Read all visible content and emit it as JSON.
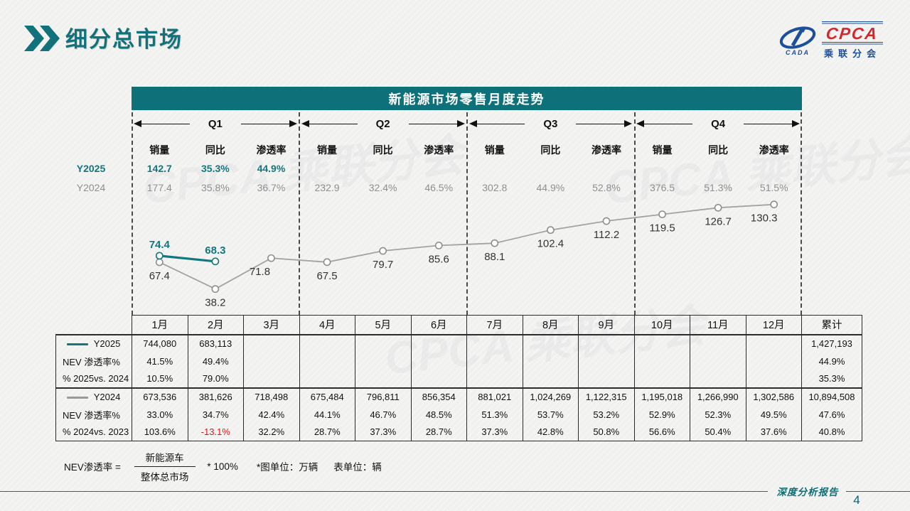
{
  "page": {
    "title": "细分总市场",
    "watermark": "CPCA 乘联分会"
  },
  "logo": {
    "brand": "CPCA",
    "sub_brand": "乘联分会",
    "emblem_text": "CADA"
  },
  "chart_header": {
    "title": "新能源市场零售月度走势"
  },
  "chart_data": {
    "type": "line",
    "title": "新能源市场零售月度走势",
    "unit_note": "图单位：万辆",
    "x_categories": [
      "1月",
      "2月",
      "3月",
      "4月",
      "5月",
      "6月",
      "7月",
      "8月",
      "9月",
      "10月",
      "11月",
      "12月"
    ],
    "quarters": [
      "Q1",
      "Q2",
      "Q3",
      "Q4"
    ],
    "ylim": [
      20,
      150
    ],
    "legend_position": "table-left-column",
    "grid": "dashed vertical separators between quarters",
    "series": [
      {
        "name": "Y2025",
        "color": "#117781",
        "values": [
          74.4,
          68.3,
          null,
          null,
          null,
          null,
          null,
          null,
          null,
          null,
          null,
          null
        ]
      },
      {
        "name": "Y2024",
        "color": "#a3a3a3",
        "values": [
          67.4,
          38.2,
          71.8,
          67.5,
          79.7,
          85.6,
          88.1,
          102.4,
          112.2,
          119.5,
          126.7,
          130.3
        ]
      }
    ],
    "quarter_stats": {
      "columns": [
        "销量",
        "同比",
        "渗透率"
      ],
      "rows": [
        {
          "label": "Y2025",
          "values": [
            "142.7",
            "35.3%",
            "44.9%",
            "",
            "",
            "",
            "",
            "",
            "",
            "",
            "",
            ""
          ]
        },
        {
          "label": "Y2024",
          "values": [
            "177.4",
            "35.8%",
            "36.7%",
            "232.9",
            "32.4%",
            "46.5%",
            "302.8",
            "44.9%",
            "52.8%",
            "376.5",
            "51.3%",
            "51.5%"
          ]
        }
      ]
    }
  },
  "table": {
    "month_headers": [
      "1月",
      "2月",
      "3月",
      "4月",
      "5月",
      "6月",
      "7月",
      "8月",
      "9月",
      "10月",
      "11月",
      "12月"
    ],
    "total_header": "累计",
    "blocks": [
      {
        "rows": [
          {
            "label": "Y2025",
            "legend_color": "#117781",
            "cells": [
              "744,080",
              "683,113",
              "",
              "",
              "",
              "",
              "",
              "",
              "",
              "",
              "",
              ""
            ],
            "total": "1,427,193"
          },
          {
            "label": "NEV 渗透率%",
            "cells": [
              "41.5%",
              "49.4%",
              "",
              "",
              "",
              "",
              "",
              "",
              "",
              "",
              "",
              ""
            ],
            "total": "44.9%"
          },
          {
            "label": "% 2025vs. 2024",
            "cells": [
              "10.5%",
              "79.0%",
              "",
              "",
              "",
              "",
              "",
              "",
              "",
              "",
              "",
              ""
            ],
            "total": "35.3%"
          }
        ]
      },
      {
        "rows": [
          {
            "label": "Y2024",
            "legend_color": "#9a9a9a",
            "cells": [
              "673,536",
              "381,626",
              "718,498",
              "675,484",
              "796,811",
              "856,354",
              "881,021",
              "1,024,269",
              "1,122,315",
              "1,195,018",
              "1,266,990",
              "1,302,586"
            ],
            "total": "10,894,508"
          },
          {
            "label": "NEV 渗透率%",
            "cells": [
              "33.0%",
              "34.7%",
              "42.4%",
              "44.1%",
              "46.7%",
              "48.5%",
              "51.3%",
              "53.7%",
              "53.2%",
              "52.9%",
              "52.3%",
              "49.5%"
            ],
            "total": "47.6%"
          },
          {
            "label": "% 2024vs. 2023",
            "cells": [
              "103.6%",
              "-13.1%",
              "32.2%",
              "28.7%",
              "37.3%",
              "28.7%",
              "37.3%",
              "42.8%",
              "50.8%",
              "56.6%",
              "50.4%",
              "37.6%"
            ],
            "total": "40.8%"
          }
        ]
      }
    ]
  },
  "footnote": {
    "lhs": "NEV渗透率 =",
    "numerator": "新能源车",
    "denominator": "整体总市场",
    "rhs": "* 100%",
    "note_chart": "*图单位：万辆",
    "note_table": "表单位：辆"
  },
  "footer": {
    "label": "深度分析报告",
    "page": "4"
  }
}
